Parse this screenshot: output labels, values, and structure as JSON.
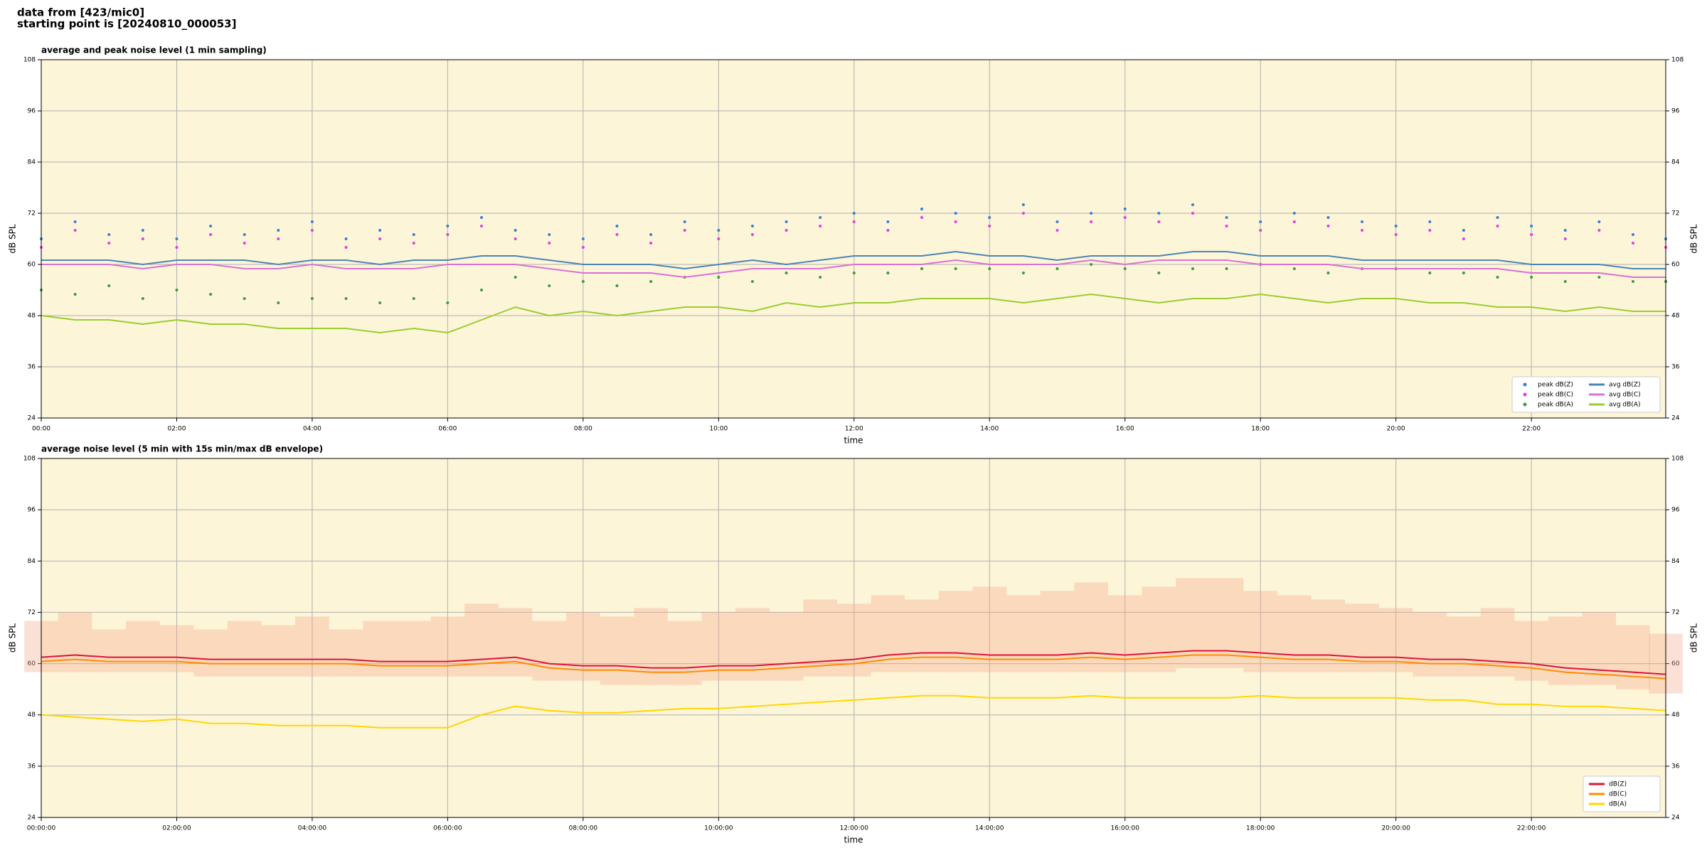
{
  "page": {
    "title": [
      "data from [423/mic0]",
      "starting point is [20240810_000053]"
    ]
  },
  "chart_data": [
    {
      "type": "line",
      "title": "average and peak noise level (1 min sampling)",
      "xlabel": "time",
      "ylabel": "dB SPL",
      "facecolor": "#fdf5d8",
      "grid": true,
      "legend": "lower right",
      "ylim": [
        24,
        108
      ],
      "yticks": [
        24,
        36,
        48,
        60,
        72,
        84,
        96,
        108
      ],
      "xlim": [
        0,
        1439
      ],
      "xticks": [
        {
          "value": 0,
          "label": "00:00"
        },
        {
          "value": 120,
          "label": "02:00"
        },
        {
          "value": 240,
          "label": "04:00"
        },
        {
          "value": 360,
          "label": "06:00"
        },
        {
          "value": 480,
          "label": "08:00"
        },
        {
          "value": 600,
          "label": "10:00"
        },
        {
          "value": 720,
          "label": "12:00"
        },
        {
          "value": 840,
          "label": "14:00"
        },
        {
          "value": 960,
          "label": "16:00"
        },
        {
          "value": 1080,
          "label": "18:00"
        },
        {
          "value": 1200,
          "label": "20:00"
        },
        {
          "value": 1320,
          "label": "22:00"
        }
      ],
      "x": [
        0,
        30,
        60,
        90,
        120,
        150,
        180,
        210,
        240,
        270,
        300,
        330,
        360,
        390,
        420,
        450,
        480,
        510,
        540,
        570,
        600,
        630,
        660,
        690,
        720,
        750,
        780,
        810,
        840,
        870,
        900,
        930,
        960,
        990,
        1020,
        1050,
        1080,
        1110,
        1140,
        1170,
        1200,
        1230,
        1260,
        1290,
        1320,
        1350,
        1380,
        1410,
        1439
      ],
      "series": [
        {
          "name": "peak dB(Z)",
          "kind": "scatter",
          "color": "#3a7fd0",
          "values": [
            66,
            70,
            67,
            68,
            66,
            69,
            67,
            68,
            70,
            66,
            68,
            67,
            69,
            71,
            68,
            67,
            66,
            69,
            67,
            70,
            68,
            69,
            70,
            71,
            72,
            70,
            73,
            72,
            71,
            74,
            70,
            72,
            73,
            72,
            74,
            71,
            70,
            72,
            71,
            70,
            69,
            70,
            68,
            71,
            69,
            68,
            70,
            67,
            66
          ]
        },
        {
          "name": "peak dB(C)",
          "kind": "scatter",
          "color": "#e83ae8",
          "values": [
            64,
            68,
            65,
            66,
            64,
            67,
            65,
            66,
            68,
            64,
            66,
            65,
            67,
            69,
            66,
            65,
            64,
            67,
            65,
            68,
            66,
            67,
            68,
            69,
            70,
            68,
            71,
            70,
            69,
            72,
            68,
            70,
            71,
            70,
            72,
            69,
            68,
            70,
            69,
            68,
            67,
            68,
            66,
            69,
            67,
            66,
            68,
            65,
            64
          ]
        },
        {
          "name": "peak dB(A)",
          "kind": "scatter",
          "color": "#3f9a3f",
          "values": [
            54,
            53,
            55,
            52,
            54,
            53,
            52,
            51,
            52,
            52,
            51,
            52,
            51,
            54,
            57,
            55,
            56,
            55,
            56,
            57,
            57,
            56,
            58,
            57,
            58,
            58,
            59,
            59,
            59,
            58,
            59,
            60,
            59,
            58,
            59,
            59,
            60,
            59,
            58,
            59,
            59,
            58,
            58,
            57,
            57,
            56,
            57,
            56,
            56
          ]
        },
        {
          "name": "avg dB(Z)",
          "kind": "line",
          "color": "#4a86b4",
          "values": [
            61,
            61,
            61,
            60,
            61,
            61,
            61,
            60,
            61,
            61,
            60,
            61,
            61,
            62,
            62,
            61,
            60,
            60,
            60,
            59,
            60,
            61,
            60,
            61,
            62,
            62,
            62,
            63,
            62,
            62,
            61,
            62,
            62,
            62,
            63,
            63,
            62,
            62,
            62,
            61,
            61,
            61,
            61,
            61,
            60,
            60,
            60,
            59,
            59
          ]
        },
        {
          "name": "avg dB(C)",
          "kind": "line",
          "color": "#da70d6",
          "values": [
            60,
            60,
            60,
            59,
            60,
            60,
            59,
            59,
            60,
            59,
            59,
            59,
            60,
            60,
            60,
            59,
            58,
            58,
            58,
            57,
            58,
            59,
            59,
            59,
            60,
            60,
            60,
            61,
            60,
            60,
            60,
            61,
            60,
            61,
            61,
            61,
            60,
            60,
            60,
            59,
            59,
            59,
            59,
            59,
            58,
            58,
            58,
            57,
            57
          ]
        },
        {
          "name": "avg dB(A)",
          "kind": "line",
          "color": "#9acd32",
          "values": [
            48,
            47,
            47,
            46,
            47,
            46,
            46,
            45,
            45,
            45,
            44,
            45,
            44,
            47,
            50,
            48,
            49,
            48,
            49,
            50,
            50,
            49,
            51,
            50,
            51,
            51,
            52,
            52,
            52,
            51,
            52,
            53,
            52,
            51,
            52,
            52,
            53,
            52,
            51,
            52,
            52,
            51,
            51,
            50,
            50,
            49,
            50,
            49,
            49
          ]
        }
      ]
    },
    {
      "type": "line",
      "title": "average noise level (5 min with 15s min/max dB envelope)",
      "xlabel": "time",
      "ylabel": "dB SPL",
      "facecolor": "#fdf5d8",
      "grid": true,
      "legend": "lower right",
      "ylim": [
        24,
        108
      ],
      "yticks": [
        24,
        36,
        48,
        60,
        72,
        84,
        96,
        108
      ],
      "xlim": [
        0,
        1439
      ],
      "xticks": [
        {
          "value": 0,
          "label": "00:00:00"
        },
        {
          "value": 120,
          "label": "02:00:00"
        },
        {
          "value": 240,
          "label": "04:00:00"
        },
        {
          "value": 360,
          "label": "06:00:00"
        },
        {
          "value": 480,
          "label": "08:00:00"
        },
        {
          "value": 600,
          "label": "10:00:00"
        },
        {
          "value": 720,
          "label": "12:00:00"
        },
        {
          "value": 840,
          "label": "14:00:00"
        },
        {
          "value": 960,
          "label": "16:00:00"
        },
        {
          "value": 1080,
          "label": "18:00:00"
        },
        {
          "value": 1200,
          "label": "20:00:00"
        },
        {
          "value": 1320,
          "label": "22:00:00"
        }
      ],
      "x": [
        0,
        30,
        60,
        90,
        120,
        150,
        180,
        210,
        240,
        270,
        300,
        330,
        360,
        390,
        420,
        450,
        480,
        510,
        540,
        570,
        600,
        630,
        660,
        690,
        720,
        750,
        780,
        810,
        840,
        870,
        900,
        930,
        960,
        990,
        1020,
        1050,
        1080,
        1110,
        1140,
        1170,
        1200,
        1230,
        1260,
        1290,
        1320,
        1350,
        1380,
        1410,
        1439
      ],
      "envelope": {
        "color": "#f4a58a",
        "lower": [
          58,
          58,
          58,
          58,
          58,
          57,
          57,
          57,
          57,
          57,
          57,
          57,
          57,
          57,
          57,
          56,
          56,
          55,
          55,
          55,
          56,
          56,
          56,
          57,
          57,
          58,
          58,
          58,
          58,
          58,
          58,
          58,
          58,
          58,
          59,
          59,
          58,
          58,
          58,
          58,
          58,
          57,
          57,
          57,
          56,
          55,
          55,
          54,
          53
        ],
        "upper": [
          70,
          72,
          68,
          70,
          69,
          68,
          70,
          69,
          71,
          68,
          70,
          70,
          71,
          74,
          73,
          70,
          72,
          71,
          73,
          70,
          72,
          73,
          72,
          75,
          74,
          76,
          75,
          77,
          78,
          76,
          77,
          79,
          76,
          78,
          80,
          80,
          77,
          76,
          75,
          74,
          73,
          72,
          71,
          73,
          70,
          71,
          72,
          69,
          67
        ]
      },
      "series": [
        {
          "name": "dB(Z)",
          "kind": "line",
          "color": "#dc143c",
          "values": [
            61.5,
            62,
            61.5,
            61.5,
            61.5,
            61,
            61,
            61,
            61,
            61,
            60.5,
            60.5,
            60.5,
            61,
            61.5,
            60,
            59.5,
            59.5,
            59,
            59,
            59.5,
            59.5,
            60,
            60.5,
            61,
            62,
            62.5,
            62.5,
            62,
            62,
            62,
            62.5,
            62,
            62.5,
            63,
            63,
            62.5,
            62,
            62,
            61.5,
            61.5,
            61,
            61,
            60.5,
            60,
            59,
            58.5,
            58,
            57.5
          ]
        },
        {
          "name": "dB(C)",
          "kind": "line",
          "color": "#ff8c00",
          "values": [
            60.5,
            61,
            60.5,
            60.5,
            60.5,
            60,
            60,
            60,
            60,
            60,
            59.5,
            59.5,
            59.5,
            60,
            60.5,
            59,
            58.5,
            58.5,
            58,
            58,
            58.5,
            58.5,
            59,
            59.5,
            60,
            61,
            61.5,
            61.5,
            61,
            61,
            61,
            61.5,
            61,
            61.5,
            62,
            62,
            61.5,
            61,
            61,
            60.5,
            60.5,
            60,
            60,
            59.5,
            59,
            58,
            57.5,
            57,
            56.5
          ]
        },
        {
          "name": "dB(A)",
          "kind": "line",
          "color": "#ffd700",
          "values": [
            48,
            47.5,
            47,
            46.5,
            47,
            46,
            46,
            45.5,
            45.5,
            45.5,
            45,
            45,
            45,
            48,
            50,
            49,
            48.5,
            48.5,
            49,
            49.5,
            49.5,
            50,
            50.5,
            51,
            51.5,
            52,
            52.5,
            52.5,
            52,
            52,
            52,
            52.5,
            52,
            52,
            52,
            52,
            52.5,
            52,
            52,
            52,
            52,
            51.5,
            51.5,
            50.5,
            50.5,
            50,
            50,
            49.5,
            49
          ]
        }
      ]
    }
  ]
}
